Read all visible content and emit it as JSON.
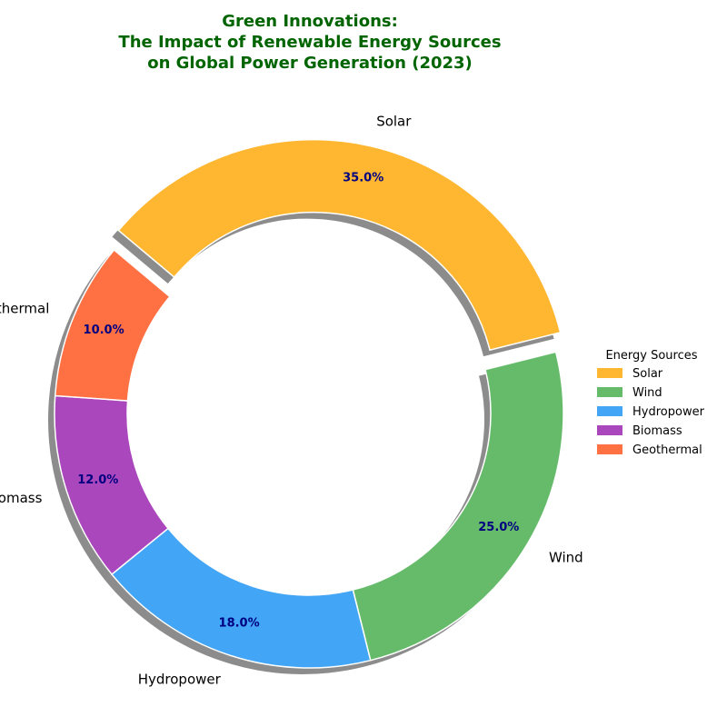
{
  "chart_data": {
    "type": "pie",
    "variant": "donut",
    "title_lines": [
      "Green Innovations:",
      "The Impact of Renewable Energy Sources",
      "on Global Power Generation (2023)"
    ],
    "categories": [
      "Solar",
      "Wind",
      "Hydropower",
      "Biomass",
      "Geothermal"
    ],
    "values": [
      35,
      25,
      18,
      12,
      10
    ],
    "value_labels": [
      "35.0%",
      "25.0%",
      "18.0%",
      "12.0%",
      "10.0%"
    ],
    "colors": [
      "#FFB732",
      "#66BB6A",
      "#42A5F5",
      "#AB47BC",
      "#FF7043"
    ],
    "exploded": [
      true,
      false,
      false,
      false,
      false
    ],
    "shadow": true,
    "legend": {
      "title": "Energy Sources",
      "placement": "right"
    },
    "title_color": "#006400",
    "value_label_color": "#000080"
  }
}
